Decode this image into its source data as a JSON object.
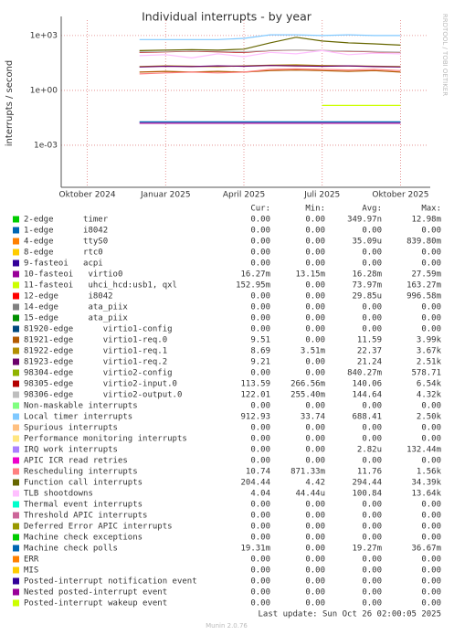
{
  "chart_data": {
    "type": "line",
    "title": "Individual interrupts - by year",
    "y_label": "interrupts / second",
    "side_text": "RRDTOOL / TOBI OETIKER",
    "y_scale": "log",
    "grid": true,
    "ylim": [
      5e-06,
      7000
    ],
    "yticks": [
      {
        "value": 1000,
        "label": "1e+03"
      },
      {
        "value": 1,
        "label": "1e+00"
      },
      {
        "value": 0.001,
        "label": "1e-03"
      }
    ],
    "xlim": [
      "2024-09",
      "2025-11"
    ],
    "xticks": [
      {
        "value": "2024-10",
        "label": "Oktober 2024"
      },
      {
        "value": "2025-01",
        "label": "Januar 2025"
      },
      {
        "value": "2025-04",
        "label": "April 2025"
      },
      {
        "value": "2025-07",
        "label": "Juli 2025"
      },
      {
        "value": "2025-10",
        "label": "Oktober 2025"
      }
    ],
    "x": [
      "2024-10",
      "2024-11",
      "2024-12",
      "2025-01",
      "2025-02",
      "2025-03",
      "2025-04",
      "2025-05",
      "2025-06",
      "2025-07",
      "2025-08",
      "2025-09",
      "2025-10"
    ],
    "legend_columns": [
      "Cur:",
      "Min:",
      "Avg:",
      "Max:"
    ],
    "series": [
      {
        "name": "2-edge      timer",
        "color": "#00CC00",
        "stats": [
          "0.00",
          "0.00",
          "349.97n",
          "12.98m"
        ],
        "values": [
          null,
          null,
          null,
          null,
          null,
          null,
          null,
          null,
          null,
          null,
          null,
          null,
          null
        ]
      },
      {
        "name": "1-edge      i8042",
        "color": "#0066B3",
        "stats": [
          "0.00",
          "0.00",
          "0.00",
          "0.00"
        ],
        "values": [
          null,
          null,
          null,
          null,
          null,
          null,
          null,
          null,
          null,
          null,
          null,
          null,
          null
        ]
      },
      {
        "name": "4-edge      ttyS0",
        "color": "#FF8000",
        "stats": [
          "0.00",
          "0.00",
          "35.09u",
          "839.80m"
        ],
        "values": [
          null,
          null,
          null,
          null,
          null,
          null,
          null,
          null,
          null,
          null,
          null,
          null,
          null
        ]
      },
      {
        "name": "8-edge      rtc0",
        "color": "#FFCC00",
        "stats": [
          "0.00",
          "0.00",
          "0.00",
          "0.00"
        ],
        "values": [
          null,
          null,
          null,
          null,
          null,
          null,
          null,
          null,
          null,
          null,
          null,
          null,
          null
        ]
      },
      {
        "name": "9-fasteoi   acpi",
        "color": "#330099",
        "stats": [
          "0.00",
          "0.00",
          "0.00",
          "0.00"
        ],
        "values": [
          null,
          null,
          null,
          null,
          null,
          null,
          null,
          null,
          null,
          null,
          null,
          null,
          null
        ]
      },
      {
        "name": "10-fasteoi   virtio0",
        "color": "#990099",
        "stats": [
          "16.27m",
          "13.15m",
          "16.28m",
          "27.59m"
        ],
        "values": [
          null,
          null,
          0.016,
          0.016,
          0.016,
          0.016,
          0.016,
          0.016,
          0.016,
          0.016,
          0.016,
          0.016,
          0.016
        ]
      },
      {
        "name": "11-fasteoi   uhci_hcd:usb1, qxl",
        "color": "#CCFF00",
        "stats": [
          "152.95m",
          "0.00",
          "73.97m",
          "163.27m"
        ],
        "values": [
          null,
          null,
          null,
          null,
          null,
          null,
          null,
          null,
          null,
          0.15,
          0.15,
          0.15,
          0.15
        ]
      },
      {
        "name": "12-edge      i8042",
        "color": "#FF0000",
        "stats": [
          "0.00",
          "0.00",
          "29.85u",
          "996.58m"
        ],
        "values": [
          null,
          null,
          null,
          null,
          null,
          null,
          null,
          null,
          null,
          null,
          null,
          null,
          null
        ]
      },
      {
        "name": "14-edge      ata_piix",
        "color": "#808080",
        "stats": [
          "0.00",
          "0.00",
          "0.00",
          "0.00"
        ],
        "values": [
          null,
          null,
          null,
          null,
          null,
          null,
          null,
          null,
          null,
          null,
          null,
          null,
          null
        ]
      },
      {
        "name": "15-edge      ata_piix",
        "color": "#008F00",
        "stats": [
          "0.00",
          "0.00",
          "0.00",
          "0.00"
        ],
        "values": [
          null,
          null,
          null,
          null,
          null,
          null,
          null,
          null,
          null,
          null,
          null,
          null,
          null
        ]
      },
      {
        "name": "81920-edge      virtio1-config",
        "color": "#00487D",
        "stats": [
          "0.00",
          "0.00",
          "0.00",
          "0.00"
        ],
        "values": [
          null,
          null,
          null,
          null,
          null,
          null,
          null,
          null,
          null,
          null,
          null,
          null,
          null
        ]
      },
      {
        "name": "81921-edge      virtio1-req.0",
        "color": "#B35A00",
        "stats": [
          "9.51",
          "0.00",
          "11.59",
          "3.99k"
        ],
        "values": [
          null,
          null,
          10,
          11,
          10,
          11,
          10,
          12,
          13,
          12,
          11,
          12,
          10
        ]
      },
      {
        "name": "81922-edge      virtio1-req.1",
        "color": "#B38F00",
        "stats": [
          "8.69",
          "3.51m",
          "22.37",
          "3.67k"
        ],
        "values": [
          null,
          null,
          20,
          22,
          21,
          20,
          22,
          24,
          25,
          23,
          22,
          21,
          20
        ]
      },
      {
        "name": "81923-edge      virtio1-req.2",
        "color": "#6B006B",
        "stats": [
          "9.21",
          "0.00",
          "21.24",
          "2.51k"
        ],
        "values": [
          null,
          null,
          19,
          21,
          20,
          22,
          21,
          23,
          22,
          21,
          22,
          20,
          19
        ]
      },
      {
        "name": "98304-edge      virtio2-config",
        "color": "#8FB300",
        "stats": [
          "0.00",
          "0.00",
          "840.27m",
          "578.71"
        ],
        "values": [
          null,
          null,
          null,
          null,
          null,
          null,
          null,
          null,
          null,
          null,
          null,
          null,
          null
        ]
      },
      {
        "name": "98305-edge      virtio2-input.0",
        "color": "#B30000",
        "stats": [
          "113.59",
          "266.56m",
          "140.06",
          "6.54k"
        ],
        "values": [
          null,
          null,
          120,
          130,
          140,
          130,
          120,
          150,
          160,
          150,
          140,
          130,
          120
        ]
      },
      {
        "name": "98306-edge      virtio2-output.0",
        "color": "#BEBEBE",
        "stats": [
          "122.01",
          "255.40m",
          "144.64",
          "4.32k"
        ],
        "values": [
          null,
          null,
          130,
          135,
          145,
          140,
          130,
          155,
          165,
          150,
          145,
          135,
          125
        ]
      },
      {
        "name": "Non-maskable interrupts",
        "color": "#80FF80",
        "stats": [
          "0.00",
          "0.00",
          "0.00",
          "0.00"
        ],
        "values": [
          null,
          null,
          null,
          null,
          null,
          null,
          null,
          null,
          null,
          null,
          null,
          null,
          null
        ]
      },
      {
        "name": "Local timer interrupts",
        "color": "#80C9FF",
        "stats": [
          "912.93",
          "33.74",
          "688.41",
          "2.50k"
        ],
        "values": [
          null,
          null,
          600,
          600,
          600,
          600,
          700,
          1100,
          1100,
          1000,
          1100,
          1000,
          1000
        ]
      },
      {
        "name": "Spurious interrupts",
        "color": "#FFC080",
        "stats": [
          "0.00",
          "0.00",
          "0.00",
          "0.00"
        ],
        "values": [
          null,
          null,
          null,
          null,
          null,
          null,
          null,
          null,
          null,
          null,
          null,
          null,
          null
        ]
      },
      {
        "name": "Performance monitoring interrupts",
        "color": "#FFE680",
        "stats": [
          "0.00",
          "0.00",
          "0.00",
          "0.00"
        ],
        "values": [
          null,
          null,
          null,
          null,
          null,
          null,
          null,
          null,
          null,
          null,
          null,
          null,
          null
        ]
      },
      {
        "name": "IRQ work interrupts",
        "color": "#AA80FF",
        "stats": [
          "0.00",
          "0.00",
          "2.82u",
          "132.44m"
        ],
        "values": [
          null,
          null,
          null,
          null,
          null,
          null,
          null,
          null,
          null,
          null,
          null,
          null,
          null
        ]
      },
      {
        "name": "APIC ICR read retries",
        "color": "#EE00CC",
        "stats": [
          "0.00",
          "0.00",
          "0.00",
          "0.00"
        ],
        "values": [
          null,
          null,
          null,
          null,
          null,
          null,
          null,
          null,
          null,
          null,
          null,
          null,
          null
        ]
      },
      {
        "name": "Rescheduling interrupts",
        "color": "#FF8080",
        "stats": [
          "10.74",
          "871.33m",
          "11.76",
          "1.56k"
        ],
        "values": [
          null,
          null,
          8,
          9,
          10,
          9,
          10,
          14,
          15,
          14,
          13,
          14,
          12
        ]
      },
      {
        "name": "Function call interrupts",
        "color": "#666600",
        "stats": [
          "204.44",
          "4.42",
          "294.44",
          "34.39k"
        ],
        "values": [
          null,
          null,
          150,
          160,
          170,
          160,
          180,
          400,
          800,
          500,
          400,
          350,
          300
        ]
      },
      {
        "name": "TLB shootdowns",
        "color": "#FFBFFF",
        "stats": [
          "4.04",
          "44.44u",
          "100.84",
          "13.64k"
        ],
        "values": [
          null,
          null,
          80,
          90,
          60,
          100,
          70,
          120,
          100,
          150,
          90,
          110,
          100
        ]
      },
      {
        "name": "Thermal event interrupts",
        "color": "#00FFCC",
        "stats": [
          "0.00",
          "0.00",
          "0.00",
          "0.00"
        ],
        "values": [
          null,
          null,
          null,
          null,
          null,
          null,
          null,
          null,
          null,
          null,
          null,
          null,
          null
        ]
      },
      {
        "name": "Threshold APIC interrupts",
        "color": "#CC6699",
        "stats": [
          "0.00",
          "0.00",
          "0.00",
          "0.00"
        ],
        "values": [
          null,
          null,
          null,
          null,
          null,
          null,
          null,
          null,
          null,
          null,
          null,
          null,
          null
        ]
      },
      {
        "name": "Deferred Error APIC interrupts",
        "color": "#999900",
        "stats": [
          "0.00",
          "0.00",
          "0.00",
          "0.00"
        ],
        "values": [
          null,
          null,
          null,
          null,
          null,
          null,
          null,
          null,
          null,
          null,
          null,
          null,
          null
        ]
      },
      {
        "name": "Machine check exceptions",
        "color": "#00CC00",
        "stats": [
          "0.00",
          "0.00",
          "0.00",
          "0.00"
        ],
        "values": [
          null,
          null,
          null,
          null,
          null,
          null,
          null,
          null,
          null,
          null,
          null,
          null,
          null
        ]
      },
      {
        "name": "Machine check polls",
        "color": "#0066B3",
        "stats": [
          "19.31m",
          "0.00",
          "19.27m",
          "36.67m"
        ],
        "values": [
          null,
          null,
          0.019,
          0.019,
          0.019,
          0.019,
          0.019,
          0.019,
          0.019,
          0.019,
          0.019,
          0.019,
          0.019
        ]
      },
      {
        "name": "ERR",
        "color": "#FF8000",
        "stats": [
          "0.00",
          "0.00",
          "0.00",
          "0.00"
        ],
        "values": [
          null,
          null,
          null,
          null,
          null,
          null,
          null,
          null,
          null,
          null,
          null,
          null,
          null
        ]
      },
      {
        "name": "MIS",
        "color": "#FFCC00",
        "stats": [
          "0.00",
          "0.00",
          "0.00",
          "0.00"
        ],
        "values": [
          null,
          null,
          null,
          null,
          null,
          null,
          null,
          null,
          null,
          null,
          null,
          null,
          null
        ]
      },
      {
        "name": "Posted-interrupt notification event",
        "color": "#330099",
        "stats": [
          "0.00",
          "0.00",
          "0.00",
          "0.00"
        ],
        "values": [
          null,
          null,
          null,
          null,
          null,
          null,
          null,
          null,
          null,
          null,
          null,
          null,
          null
        ]
      },
      {
        "name": "Nested posted-interrupt event",
        "color": "#990099",
        "stats": [
          "0.00",
          "0.00",
          "0.00",
          "0.00"
        ],
        "values": [
          null,
          null,
          null,
          null,
          null,
          null,
          null,
          null,
          null,
          null,
          null,
          null,
          null
        ]
      },
      {
        "name": "Posted-interrupt wakeup event",
        "color": "#CCFF00",
        "stats": [
          "0.00",
          "0.00",
          "0.00",
          "0.00"
        ],
        "values": [
          null,
          null,
          null,
          null,
          null,
          null,
          null,
          null,
          null,
          null,
          null,
          null,
          null
        ]
      }
    ],
    "last_update": "Last update: Sun Oct 26 02:00:05 2025",
    "footer": "Munin 2.0.76"
  }
}
